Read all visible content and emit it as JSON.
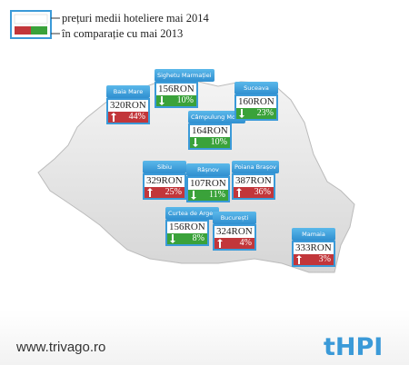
{
  "legend": {
    "line1": "prețuri medii hoteliere mai 2014",
    "line2": "în comparație cu mai 2013"
  },
  "cities": [
    {
      "name": "Baia Mare",
      "price": "320RON",
      "change": "44%",
      "direction": "up"
    },
    {
      "name": "Sighetu Marmației",
      "price": "156RON",
      "change": "10%",
      "direction": "down"
    },
    {
      "name": "Câmpulung Mold.",
      "price": "164RON",
      "change": "10%",
      "direction": "down"
    },
    {
      "name": "Suceava",
      "price": "160RON",
      "change": "23%",
      "direction": "down"
    },
    {
      "name": "Sibiu",
      "price": "329RON",
      "change": "25%",
      "direction": "up"
    },
    {
      "name": "Râșnov",
      "price": "107RON",
      "change": "11%",
      "direction": "down"
    },
    {
      "name": "Poiana Brașov",
      "price": "387RON",
      "change": "36%",
      "direction": "up"
    },
    {
      "name": "Curtea de Argeș",
      "price": "156RON",
      "change": "8%",
      "direction": "down"
    },
    {
      "name": "București",
      "price": "324RON",
      "change": "4%",
      "direction": "up"
    },
    {
      "name": "Mamaia",
      "price": "333RON",
      "change": "3%",
      "direction": "up"
    }
  ],
  "footer": {
    "url": "www.trivago.ro",
    "brand": "tHPI"
  }
}
